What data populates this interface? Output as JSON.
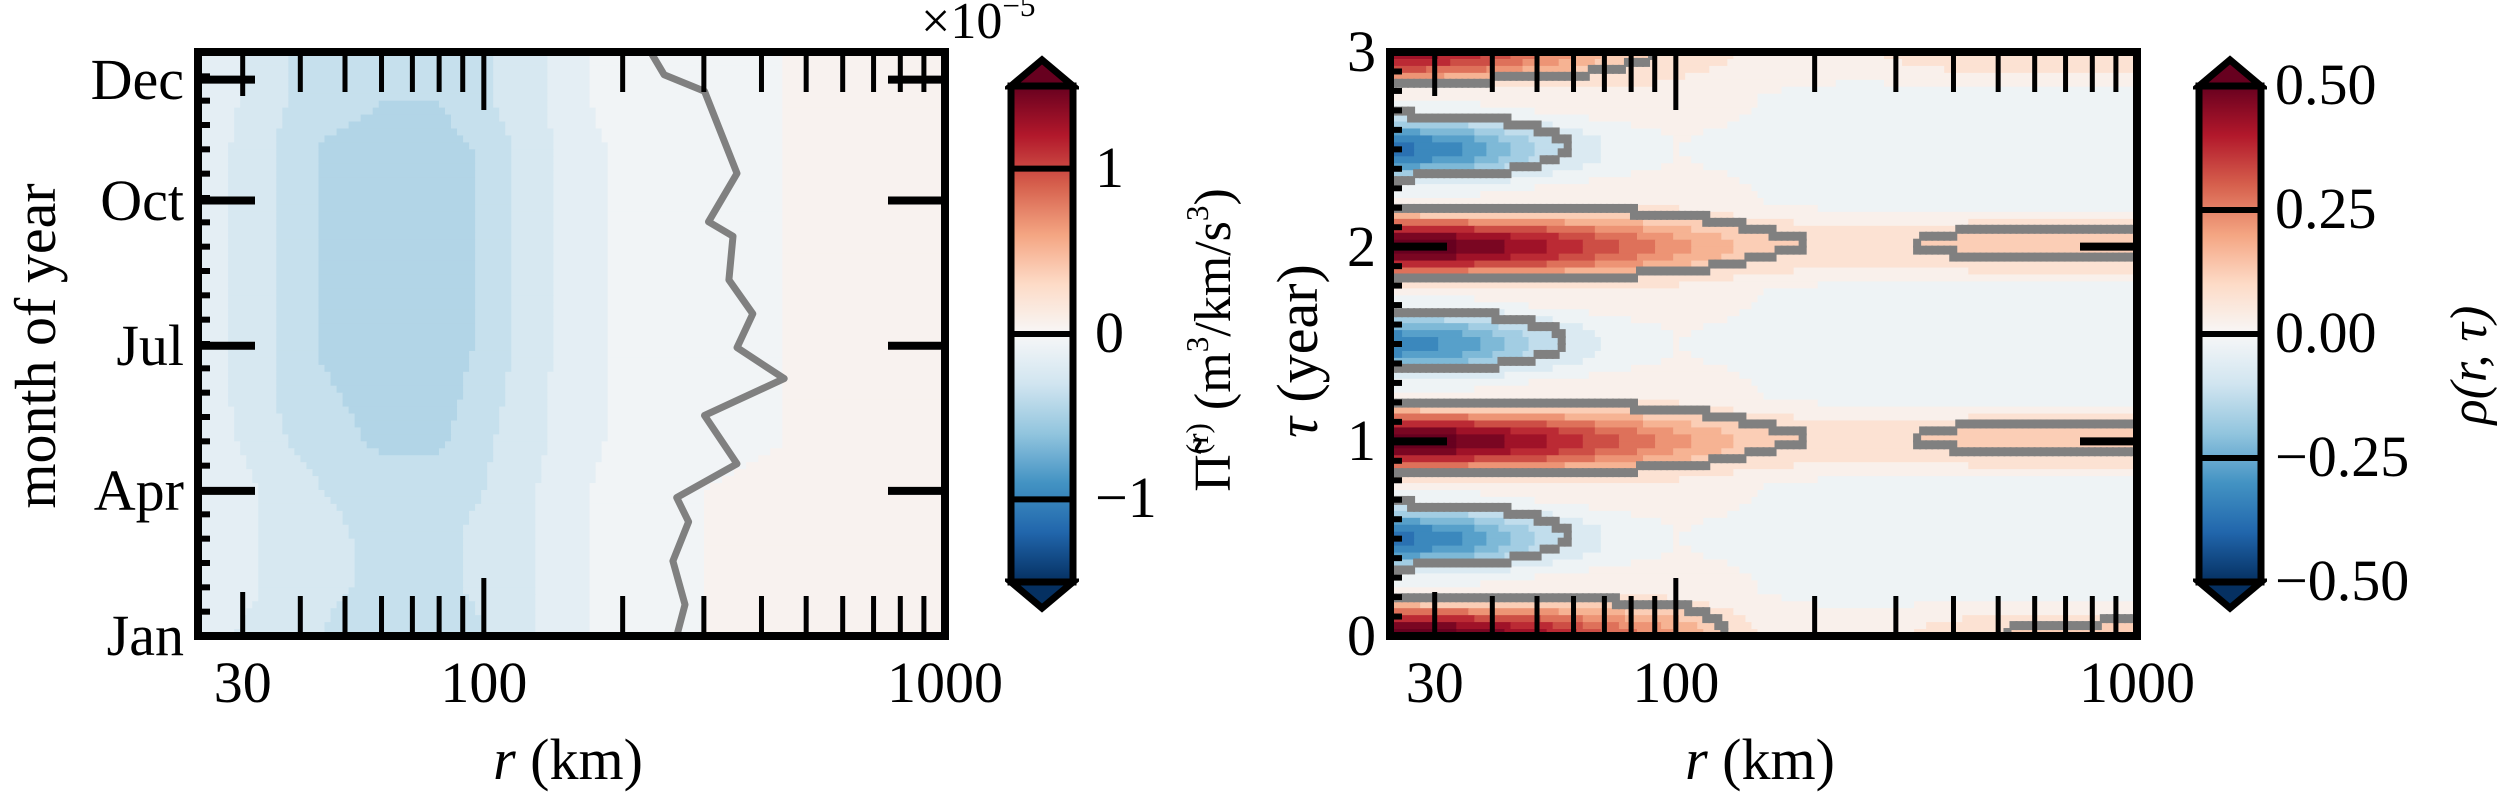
{
  "colormap": [
    "#053061",
    "#2166ac",
    "#4393c3",
    "#92c5de",
    "#d1e5f0",
    "#f7f7f7",
    "#fddbc7",
    "#f4a582",
    "#d6604d",
    "#b2182b",
    "#67001f"
  ],
  "contour_color": "#808080",
  "chart_data": [
    {
      "type": "heatmap",
      "panel": "left",
      "xlabel": {
        "var": "r",
        "unit": "(km)"
      },
      "ylabel": "month of year",
      "xscale": "log",
      "xlim": [
        24,
        1000
      ],
      "ylim": [
        0,
        12.07
      ],
      "xticks": [
        {
          "value": 30,
          "label": "30"
        },
        {
          "value": 100,
          "label": "100"
        },
        {
          "value": 1000,
          "label": "1000"
        }
      ],
      "xminor": [
        40,
        50,
        60,
        70,
        80,
        90,
        200,
        300,
        400,
        500,
        600,
        700,
        800,
        900
      ],
      "yticks": [
        {
          "value": 0,
          "label": "Jan"
        },
        {
          "value": 3,
          "label": "Apr"
        },
        {
          "value": 6,
          "label": "Jul"
        },
        {
          "value": 9,
          "label": "Oct"
        },
        {
          "value": 11.5,
          "label": "Dec"
        }
      ],
      "level_step": 0.1,
      "x": [
        24,
        28,
        35,
        45,
        60,
        80,
        100,
        130,
        170,
        230,
        300,
        450,
        700,
        1000
      ],
      "y": [
        0,
        1,
        2,
        3,
        4,
        5,
        6,
        7,
        8,
        9,
        10,
        11
      ],
      "z": [
        [
          -0.15,
          -0.2,
          -0.25,
          -0.3,
          -0.4,
          -0.4,
          -0.3,
          -0.2,
          -0.1,
          -0.03,
          0,
          0.03,
          0.05,
          0.05
        ],
        [
          -0.1,
          -0.15,
          -0.22,
          -0.28,
          -0.32,
          -0.32,
          -0.28,
          -0.2,
          -0.1,
          -0.03,
          0,
          0.04,
          0.05,
          0.05
        ],
        [
          -0.1,
          -0.15,
          -0.22,
          -0.28,
          -0.32,
          -0.32,
          -0.28,
          -0.2,
          -0.1,
          -0.03,
          0,
          0.04,
          0.05,
          0.05
        ],
        [
          -0.1,
          -0.15,
          -0.22,
          -0.3,
          -0.33,
          -0.33,
          -0.3,
          -0.2,
          -0.1,
          -0.03,
          0,
          0.01,
          0.01,
          0.01
        ],
        [
          -0.1,
          -0.18,
          -0.28,
          -0.35,
          -0.42,
          -0.42,
          -0.32,
          -0.22,
          -0.12,
          -0.04,
          -0.01,
          0,
          0,
          0
        ],
        [
          -0.12,
          -0.2,
          -0.3,
          -0.38,
          -0.45,
          -0.45,
          -0.35,
          -0.22,
          -0.12,
          -0.05,
          -0.01,
          0,
          0,
          0
        ],
        [
          -0.12,
          -0.2,
          -0.3,
          -0.42,
          -0.46,
          -0.46,
          -0.38,
          -0.24,
          -0.12,
          -0.05,
          -0.01,
          0,
          0,
          0
        ],
        [
          -0.12,
          -0.2,
          -0.3,
          -0.42,
          -0.46,
          -0.46,
          -0.38,
          -0.24,
          -0.12,
          -0.05,
          -0.01,
          0,
          0,
          0
        ],
        [
          -0.12,
          -0.2,
          -0.3,
          -0.42,
          -0.46,
          -0.46,
          -0.38,
          -0.24,
          -0.12,
          -0.05,
          -0.01,
          0,
          0,
          0
        ],
        [
          -0.12,
          -0.2,
          -0.3,
          -0.42,
          -0.46,
          -0.46,
          -0.38,
          -0.24,
          -0.12,
          -0.05,
          -0.01,
          0,
          0,
          0
        ],
        [
          -0.12,
          -0.2,
          -0.3,
          -0.42,
          -0.46,
          -0.46,
          -0.38,
          -0.24,
          -0.12,
          -0.05,
          -0.01,
          0,
          0,
          0
        ],
        [
          -0.12,
          -0.18,
          -0.28,
          -0.35,
          -0.4,
          -0.4,
          -0.32,
          -0.22,
          -0.1,
          -0.04,
          -0.01,
          0,
          0,
          0
        ]
      ],
      "zero_contour": [
        [
          0,
          262
        ],
        [
          0.65,
          273
        ],
        [
          1.55,
          257
        ],
        [
          2.36,
          278
        ],
        [
          2.86,
          262
        ],
        [
          3.56,
          354
        ],
        [
          4.56,
          301
        ],
        [
          5.32,
          448
        ],
        [
          5.96,
          354
        ],
        [
          6.66,
          383
        ],
        [
          7.36,
          340
        ],
        [
          8.26,
          347
        ],
        [
          8.56,
          307
        ],
        [
          9.56,
          354
        ],
        [
          11.26,
          301
        ],
        [
          11.6,
          246
        ],
        [
          12.07,
          230
        ]
      ],
      "colorbar": {
        "label_main": "Π̃",
        "label_sup": "(r)",
        "label_unit_a": " (m",
        "label_unit_sup1": "3",
        "label_unit_b": "/km/s",
        "label_unit_sup2": "3",
        "label_unit_c": ")",
        "range": [
          -1.5,
          1.5
        ],
        "extend": "both",
        "ticks": [
          {
            "value": 1,
            "label": "1"
          },
          {
            "value": 0,
            "label": "0"
          },
          {
            "value": -1,
            "label": "−1"
          }
        ],
        "offset_base": "×10",
        "offset_exp": "−5"
      }
    },
    {
      "type": "heatmap",
      "panel": "right",
      "xlabel": {
        "var": "r",
        "unit": "(km)"
      },
      "ylabel": {
        "var": "τ",
        "unit": "(year)"
      },
      "xscale": "log",
      "xlim": [
        24,
        1000
      ],
      "ylim": [
        0,
        3
      ],
      "xticks": [
        {
          "value": 30,
          "label": "30"
        },
        {
          "value": 100,
          "label": "100"
        },
        {
          "value": 1000,
          "label": "1000"
        }
      ],
      "xminor": [
        40,
        50,
        60,
        70,
        80,
        90,
        200,
        300,
        400,
        500,
        600,
        700,
        800,
        900
      ],
      "yticks": [
        {
          "value": 0,
          "label": "0"
        },
        {
          "value": 1,
          "label": "1"
        },
        {
          "value": 2,
          "label": "2"
        },
        {
          "value": 3,
          "label": "3"
        }
      ],
      "level_step": 0.05,
      "contour_levels": [
        -0.1,
        0.1
      ],
      "x": [
        24,
        35,
        50,
        70,
        100,
        150,
        250,
        500,
        1000
      ],
      "y": [
        0,
        0.25,
        0.5,
        0.75,
        1,
        1.25,
        1.5,
        1.75,
        2,
        2.25,
        2.5,
        2.75,
        3
      ],
      "z": [
        [
          0.55,
          0.5,
          0.42,
          0.3,
          0.2,
          0.05,
          0.02,
          0.1,
          0.12
        ],
        [
          0,
          0,
          0.02,
          0.03,
          0.03,
          0,
          -0.02,
          -0.02,
          -0.02
        ],
        [
          -0.38,
          -0.3,
          -0.15,
          -0.05,
          0,
          -0.02,
          -0.03,
          -0.05,
          -0.05
        ],
        [
          0,
          0,
          0.02,
          0.03,
          0.03,
          0,
          -0.02,
          -0.02,
          -0.02
        ],
        [
          0.55,
          0.5,
          0.42,
          0.32,
          0.22,
          0.12,
          0.08,
          0.13,
          0.13
        ],
        [
          0,
          0,
          0.02,
          0.03,
          0.03,
          0,
          -0.02,
          -0.02,
          -0.02
        ],
        [
          -0.35,
          -0.28,
          -0.14,
          -0.05,
          0,
          -0.02,
          -0.03,
          -0.05,
          -0.05
        ],
        [
          0,
          0,
          0.02,
          0.03,
          0.03,
          0,
          -0.02,
          -0.02,
          -0.02
        ],
        [
          0.55,
          0.5,
          0.42,
          0.32,
          0.22,
          0.12,
          0.08,
          0.13,
          0.13
        ],
        [
          0,
          0,
          0.02,
          0.03,
          0.03,
          0,
          -0.02,
          -0.02,
          -0.02
        ],
        [
          -0.38,
          -0.3,
          -0.15,
          -0.05,
          0,
          -0.02,
          -0.03,
          -0.05,
          -0.05
        ],
        [
          0,
          0,
          0.02,
          0.03,
          0.03,
          0,
          -0.02,
          -0.02,
          -0.02
        ],
        [
          0.45,
          0.38,
          0.25,
          0.15,
          0.08,
          0.04,
          0.04,
          0.1,
          0.1
        ]
      ],
      "colorbar": {
        "label": "ρ(r, τ)",
        "range": [
          -0.5,
          0.5
        ],
        "extend": "both",
        "ticks": [
          {
            "value": 0.5,
            "label": "0.50"
          },
          {
            "value": 0.25,
            "label": "0.25"
          },
          {
            "value": 0,
            "label": "0.00"
          },
          {
            "value": -0.25,
            "label": "−0.25"
          },
          {
            "value": -0.5,
            "label": "−0.50"
          }
        ]
      }
    }
  ]
}
